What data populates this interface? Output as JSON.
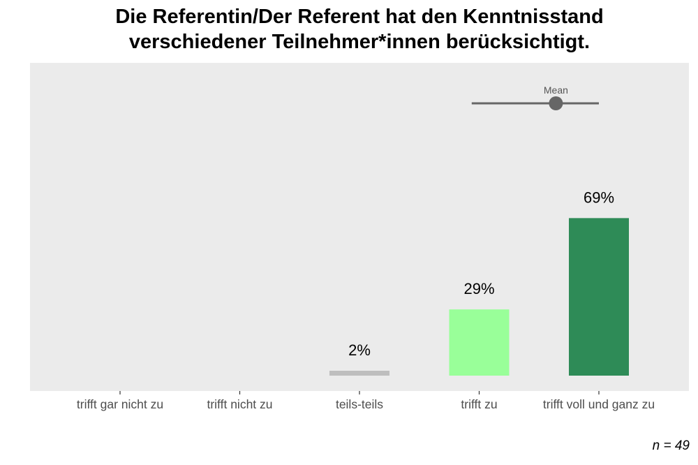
{
  "chart_data": {
    "type": "bar",
    "title_lines": [
      "Die Referentin/Der Referent hat den Kenntnisstand",
      "verschiedener Teilnehmer*innen berücksichtigt."
    ],
    "categories": [
      "trifft gar nicht zu",
      "trifft nicht zu",
      "teils-teils",
      "trifft zu",
      "trifft voll und ganz zu"
    ],
    "values": [
      0,
      0,
      2,
      29,
      69
    ],
    "value_labels": [
      "",
      "",
      "2%",
      "29%",
      "69%"
    ],
    "colors": [
      "#e8e8e8",
      "#c0c0c0",
      "#bebebe",
      "#99ff99",
      "#2e8b57"
    ],
    "ylim": [
      0,
      100
    ],
    "grid": false,
    "panel_background": "#ebebeb",
    "mean": {
      "label": "Mean",
      "value": 4.67,
      "range": [
        4.2,
        5.0
      ],
      "color": "#666666"
    },
    "note": "n = 49"
  }
}
